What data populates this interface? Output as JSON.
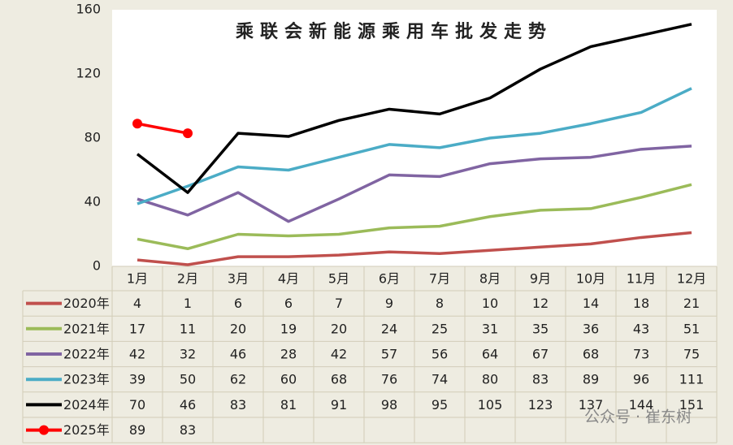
{
  "chart_data": {
    "type": "line",
    "title": "乘联会新能源乘用车批发走势",
    "categories": [
      "1月",
      "2月",
      "3月",
      "4月",
      "5月",
      "6月",
      "7月",
      "8月",
      "9月",
      "10月",
      "11月",
      "12月"
    ],
    "series": [
      {
        "name": "2020年",
        "color": "#c0504d",
        "values": [
          4,
          1,
          6,
          6,
          7,
          9,
          8,
          10,
          12,
          14,
          18,
          21
        ]
      },
      {
        "name": "2021年",
        "color": "#9bbb59",
        "values": [
          17,
          11,
          20,
          19,
          20,
          24,
          25,
          31,
          35,
          36,
          43,
          51
        ]
      },
      {
        "name": "2022年",
        "color": "#8064a2",
        "values": [
          42,
          32,
          46,
          28,
          42,
          57,
          56,
          64,
          67,
          68,
          73,
          75
        ]
      },
      {
        "name": "2023年",
        "color": "#4bacc6",
        "values": [
          39,
          50,
          62,
          60,
          68,
          76,
          74,
          80,
          83,
          89,
          96,
          111
        ]
      },
      {
        "name": "2024年",
        "color": "#000000",
        "values": [
          70,
          46,
          83,
          81,
          91,
          98,
          95,
          105,
          123,
          137,
          144,
          151
        ]
      },
      {
        "name": "2025年",
        "color": "#ff0000",
        "markers": true,
        "values": [
          89,
          83,
          null,
          null,
          null,
          null,
          null,
          null,
          null,
          null,
          null,
          null
        ]
      }
    ],
    "ylim": [
      0,
      160
    ],
    "yticks": [
      0,
      40,
      80,
      120,
      160
    ],
    "grid": false,
    "watermark": "公众号 · 崔东树"
  }
}
